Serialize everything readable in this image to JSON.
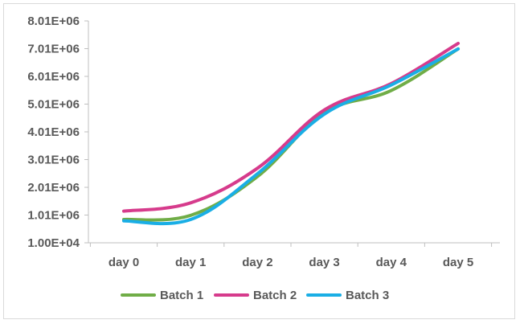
{
  "chart_data": {
    "type": "line",
    "title": "",
    "xlabel": "",
    "ylabel": "",
    "categories": [
      "day 0",
      "day 1",
      "day 2",
      "day 3",
      "day 4",
      "day 5"
    ],
    "y_ticks": [
      "1.00E+04",
      "1.01E+06",
      "2.01E+06",
      "3.01E+06",
      "4.01E+06",
      "5.01E+06",
      "6.01E+06",
      "7.01E+06",
      "8.01E+06"
    ],
    "ylim": [
      10000,
      8010000
    ],
    "grid": false,
    "legend_position": "bottom",
    "smooth": true,
    "series": [
      {
        "name": "Batch 1",
        "color": "#70ad47",
        "values": [
          850000,
          1000000,
          2400000,
          4700000,
          5500000,
          7000000
        ]
      },
      {
        "name": "Batch 2",
        "color": "#d63b8c",
        "values": [
          1150000,
          1450000,
          2700000,
          4800000,
          5750000,
          7200000
        ]
      },
      {
        "name": "Batch 3",
        "color": "#1aaee5",
        "values": [
          800000,
          850000,
          2500000,
          4650000,
          5700000,
          7000000
        ]
      }
    ]
  }
}
